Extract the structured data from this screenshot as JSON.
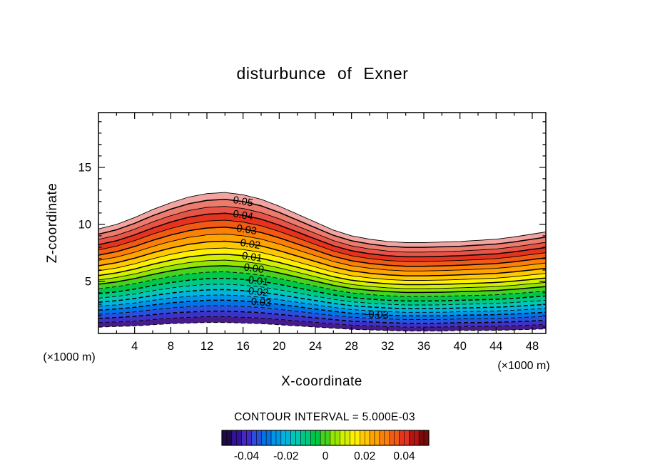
{
  "figure": {
    "title": "disturbunce of Exner",
    "x_axis_label": "X-coordinate",
    "z_axis_label": "Z-coordinate",
    "x_unit_label": "(×1000 m)",
    "z_unit_label": "(×1000 m)",
    "caption": "CONTOUR INTERVAL = 5.000E-03"
  },
  "chart_data": {
    "type": "contour",
    "title": "disturbunce of Exner",
    "xlabel": "X-coordinate",
    "ylabel": "Z-coordinate",
    "x_units": "×1000 m",
    "z_units": "×1000 m",
    "contour_interval": 0.005,
    "xlim": [
      0,
      49.5
    ],
    "zlim": [
      0.44,
      19.8
    ],
    "x_ticks": [
      4,
      8,
      12,
      16,
      20,
      24,
      28,
      32,
      36,
      40,
      44,
      48
    ],
    "z_ticks": [
      5,
      10,
      15
    ],
    "levels": [
      0.055,
      0.05,
      0.045,
      0.04,
      0.035,
      0.03,
      0.025,
      0.02,
      0.015,
      0.01,
      0.005,
      0,
      -0.005,
      -0.01,
      -0.015,
      -0.02,
      -0.025,
      -0.03,
      -0.035,
      -0.04,
      -0.045
    ],
    "level_fracs": [
      1.0,
      0.947,
      0.893,
      0.84,
      0.787,
      0.733,
      0.68,
      0.625,
      0.573,
      0.525,
      0.48,
      0.437,
      0.39,
      0.34,
      0.295,
      0.253,
      0.212,
      0.172,
      0.13,
      0.088,
      0.045
    ],
    "x_samples": [
      0,
      2,
      4,
      6,
      8,
      10,
      12,
      14,
      16,
      18,
      20,
      22,
      24,
      26,
      28,
      30,
      32,
      34,
      36,
      38,
      40,
      42,
      44,
      46,
      48,
      50
    ],
    "top_envelope": [
      9.6,
      10.0,
      10.6,
      11.3,
      11.9,
      12.4,
      12.7,
      12.8,
      12.6,
      12.2,
      11.6,
      10.9,
      10.2,
      9.5,
      9.0,
      8.7,
      8.5,
      8.4,
      8.4,
      8.45,
      8.5,
      8.6,
      8.7,
      8.9,
      9.15,
      9.4
    ],
    "bottom_envelope": [
      1.0,
      1.05,
      1.1,
      1.2,
      1.3,
      1.35,
      1.4,
      1.4,
      1.35,
      1.3,
      1.2,
      1.1,
      1.0,
      0.9,
      0.8,
      0.75,
      0.7,
      0.65,
      0.65,
      0.65,
      0.7,
      0.7,
      0.72,
      0.75,
      0.8,
      0.85
    ],
    "band_colors": [
      "#f2a4a0",
      "#ec7b6e",
      "#e65447",
      "#e6331e",
      "#f05a14",
      "#fb800a",
      "#ffa300",
      "#ffc800",
      "#fff000",
      "#d2f000",
      "#96e600",
      "#46d21e",
      "#00c846",
      "#00c882",
      "#00c8b4",
      "#00b4dc",
      "#0096e6",
      "#0073e6",
      "#2850dc",
      "#3c32c8",
      "#461c8c"
    ],
    "labels": [
      {
        "text": "0.05",
        "level": 0.05,
        "x": 16.0
      },
      {
        "text": "0.04",
        "level": 0.04,
        "x": 16.0
      },
      {
        "text": "0.03",
        "level": 0.03,
        "x": 16.4
      },
      {
        "text": "0.02",
        "level": 0.02,
        "x": 16.8
      },
      {
        "text": "0.01",
        "level": 0.01,
        "x": 17.0
      },
      {
        "text": "0.00",
        "level": 0,
        "x": 17.2
      },
      {
        "text": "-0.01",
        "level": -0.01,
        "x": 17.5
      },
      {
        "text": "-0.02",
        "level": -0.02,
        "x": 17.5
      },
      {
        "text": "-0.03",
        "level": -0.03,
        "x": 17.8
      },
      {
        "text": "-0.03",
        "level": -0.03,
        "x": 30.8
      }
    ],
    "colorbar": {
      "range": [
        -0.0525,
        0.0525
      ],
      "tick_labels": [
        "-0.04",
        "-0.02",
        "0",
        "0.02",
        "0.04"
      ],
      "tick_values": [
        -0.04,
        -0.02,
        0,
        0.02,
        0.04
      ],
      "colors": [
        "#1e0a46",
        "#32149b",
        "#4628c8",
        "#2850dc",
        "#0073e6",
        "#0096e6",
        "#00b4dc",
        "#00c8b4",
        "#00c882",
        "#00c846",
        "#46d21e",
        "#96e600",
        "#d2f000",
        "#fff000",
        "#ffc800",
        "#ffa300",
        "#fb800a",
        "#f05a14",
        "#e6331e",
        "#b41414",
        "#780a0a"
      ]
    }
  }
}
